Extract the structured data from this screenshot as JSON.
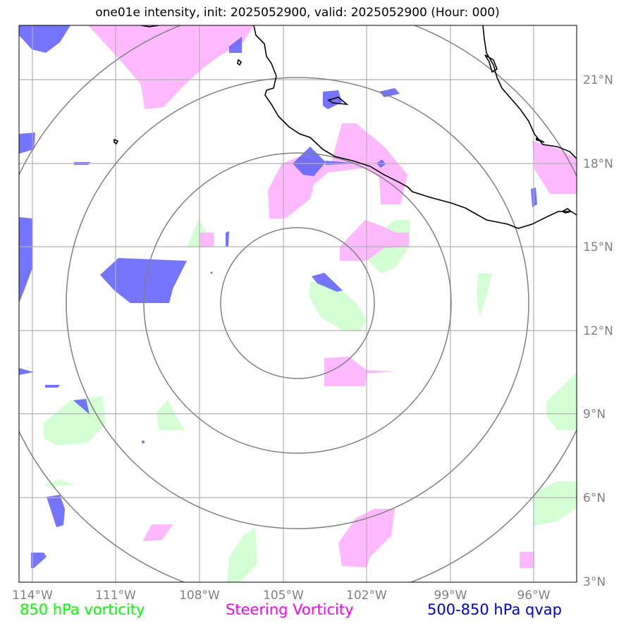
{
  "title": "one01e intensity, init: 2025052900, valid: 2025052900 (Hour: 000)",
  "lon_ticks": [
    "114°W",
    "111°W",
    "108°W",
    "105°W",
    "102°W",
    "99°W",
    "96°W"
  ],
  "lat_ticks": [
    "21°N",
    "18°N",
    "15°N",
    "12°N",
    "9°N",
    "6°N",
    "3°N"
  ],
  "legend": [
    {
      "label": "850 hPa vorticity",
      "color": "#00ff00"
    },
    {
      "label": "Steering Vorticity",
      "color": "#ff00ff"
    },
    {
      "label": "500-850 hPa qvap",
      "color": "#0000cc"
    }
  ],
  "colors": {
    "vorticity_850": "#ccffcc",
    "steering_vorticity": "#ffb3ff",
    "qvap": "#6666ff",
    "grid": "#b0b0b0",
    "range_rings": "#808080",
    "coastline": "#000000"
  }
}
